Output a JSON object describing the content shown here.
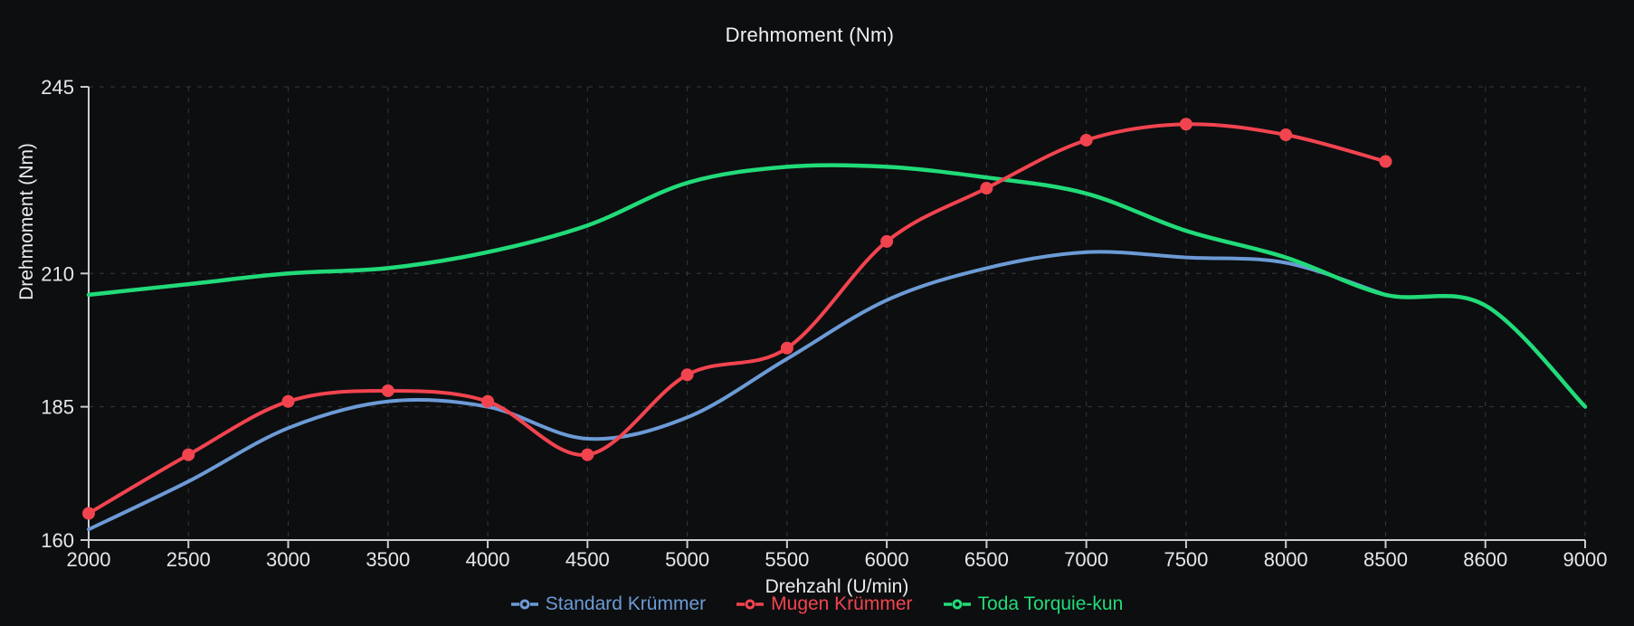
{
  "title": "Drehmoment (Nm)",
  "colors": {
    "background": "#0d0e10",
    "grid": "#36383b",
    "axis": "#cbcccd",
    "text": "#e6e7e8",
    "title": "#f0f1f2",
    "series_blue": "#6c9bd6",
    "series_red": "#f2444f",
    "series_green": "#21db79"
  },
  "chart_data": {
    "type": "line",
    "title": "Drehmoment (Nm)",
    "xlabel": "Drehzahl (U/min)",
    "ylabel": "Drehmoment (Nm)",
    "categories": [
      2000,
      2500,
      3000,
      3500,
      4000,
      4500,
      5000,
      5500,
      6000,
      6500,
      7000,
      7500,
      8000,
      8500,
      8600,
      9000
    ],
    "y_ticks": [
      160,
      185,
      210,
      245
    ],
    "ylim": [
      160,
      245
    ],
    "grid": "dashed",
    "smooth": true,
    "legend_position": "bottom",
    "series": [
      {
        "name": "Standard Krümmer",
        "color": "#6c9bd6",
        "marker": false,
        "values": [
          162,
          171,
          181,
          186,
          185,
          179,
          183,
          194,
          205,
          211,
          214,
          213,
          212,
          206,
          null,
          null
        ]
      },
      {
        "name": "Mugen Krümmer",
        "color": "#f2444f",
        "marker": true,
        "values": [
          165,
          176,
          186,
          188,
          186,
          176,
          191,
          196,
          216,
          226,
          235,
          238,
          236,
          231,
          null,
          null
        ]
      },
      {
        "name": "Toda Torquie-kun",
        "color": "#21db79",
        "marker": false,
        "values": [
          206,
          208,
          210,
          211,
          214,
          219,
          227,
          230,
          230,
          228,
          225,
          218,
          213,
          206,
          204,
          185
        ]
      }
    ]
  }
}
